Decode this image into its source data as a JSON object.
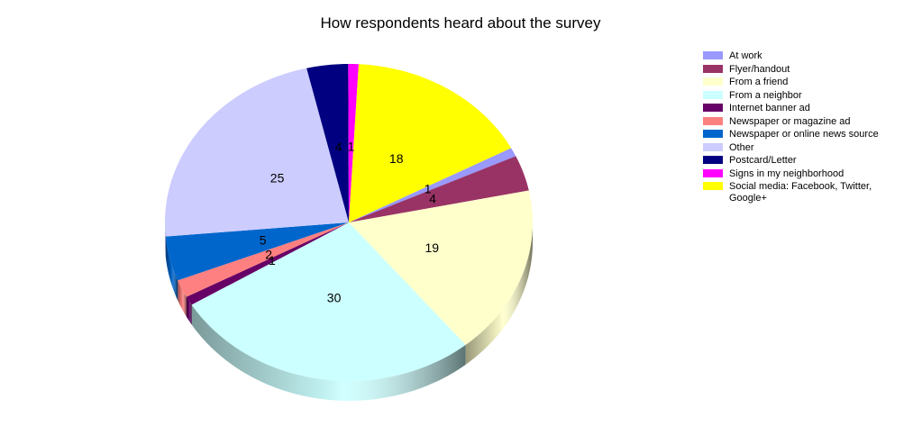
{
  "chart_data": {
    "type": "pie",
    "title": "How respondents heard about the survey",
    "slices": [
      {
        "label": "At work",
        "value": 1,
        "color": "#9999ff"
      },
      {
        "label": "Flyer/handout",
        "value": 4,
        "color": "#993366"
      },
      {
        "label": "From a friend",
        "value": 19,
        "color": "#ffffcc"
      },
      {
        "label": "From a neighbor",
        "value": 30,
        "color": "#ccffff"
      },
      {
        "label": "Internet banner ad",
        "value": 1,
        "color": "#660066"
      },
      {
        "label": "Newspaper or magazine ad",
        "value": 2,
        "color": "#ff8080"
      },
      {
        "label": "Newspaper or online news source",
        "value": 5,
        "color": "#0066cc"
      },
      {
        "label": "Other",
        "value": 25,
        "color": "#ccccff"
      },
      {
        "label": "Postcard/Letter",
        "value": 4,
        "color": "#000080"
      },
      {
        "label": "Signs in my neighborhood",
        "value": 1,
        "color": "#ff00ff"
      },
      {
        "label": "Social media: Facebook, Twitter, Google+",
        "value": 18,
        "color": "#ffff00"
      }
    ],
    "legend_position": "right",
    "style": "3d"
  }
}
